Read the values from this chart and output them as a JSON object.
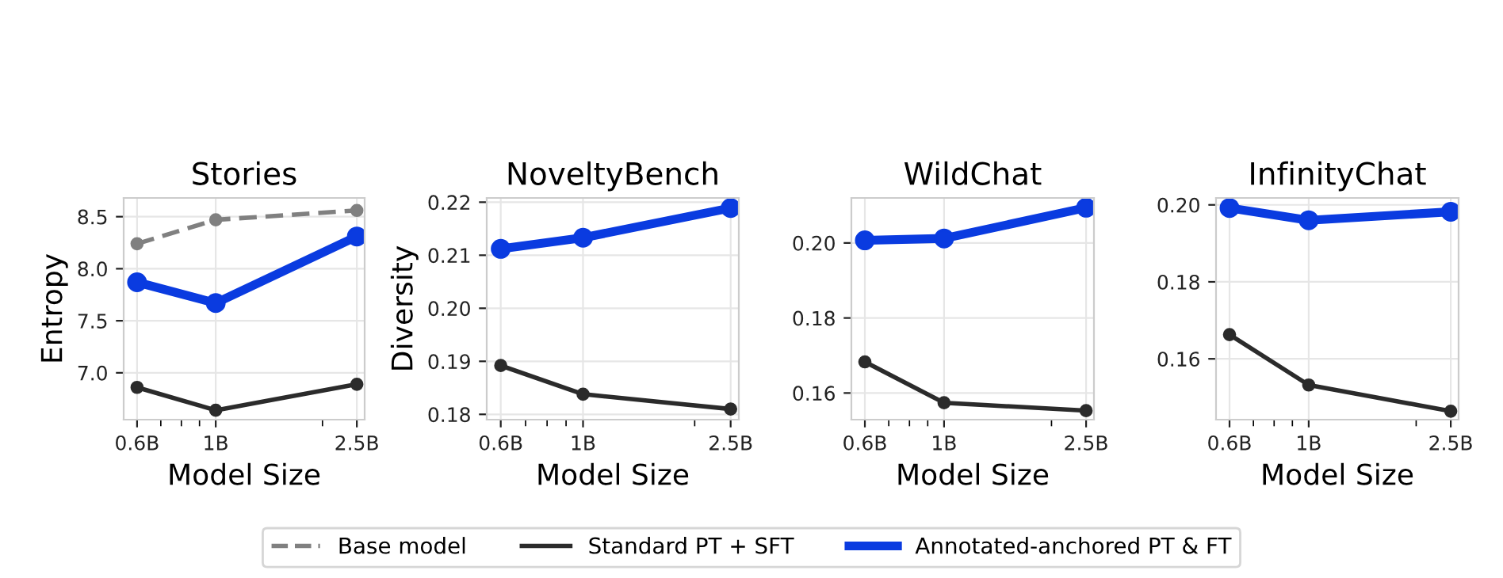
{
  "chart_data": [
    {
      "type": "line",
      "title": "Stories",
      "xlabel": "Model Size",
      "ylabel": "Entropy",
      "x": [
        0.6,
        1,
        2.5
      ],
      "log": "x",
      "xlim": [
        0.55,
        2.63
      ],
      "ylim": [
        6.55,
        8.68
      ],
      "xticks": [
        {
          "value": 0.6,
          "label": "0.6B"
        },
        {
          "value": 0.7,
          "label": null
        },
        {
          "value": 0.8,
          "label": null
        },
        {
          "value": 0.9,
          "label": null
        },
        {
          "value": 1,
          "label": "1B"
        },
        {
          "value": 2,
          "label": null
        },
        {
          "value": 2.5,
          "label": "2.5B"
        }
      ],
      "yticks": [
        {
          "value": 7,
          "label": "7.0"
        },
        7.5,
        {
          "value": 8,
          "label": "8.0"
        },
        8.5
      ],
      "grid": true,
      "marker": "circle",
      "legend": "bottom",
      "series": [
        {
          "name": "Base model",
          "color": "#808080",
          "line_style": "dashed",
          "values": [
            8.24,
            8.47,
            8.56
          ]
        },
        {
          "name": "Standard PT + SFT",
          "color": "#2b2b2b",
          "line_style": "solid",
          "values": [
            6.86,
            6.64,
            6.89
          ]
        },
        {
          "name": "Annotated-anchored PT & FT",
          "color": "#0a3be0",
          "line_style": "solid",
          "values": [
            7.87,
            7.67,
            8.31
          ]
        }
      ]
    },
    {
      "type": "line",
      "title": "NoveltyBench",
      "xlabel": "Model Size",
      "ylabel": "Diversity",
      "x": [
        0.6,
        1,
        2.5
      ],
      "log": "x",
      "xlim": [
        0.55,
        2.63
      ],
      "ylim": [
        0.179,
        0.2208
      ],
      "xticks": [
        {
          "value": 0.6,
          "label": "0.6B"
        },
        {
          "value": 0.7,
          "label": null
        },
        {
          "value": 0.8,
          "label": null
        },
        {
          "value": 0.9,
          "label": null
        },
        {
          "value": 1,
          "label": "1B"
        },
        {
          "value": 2,
          "label": null
        },
        {
          "value": 2.5,
          "label": "2.5B"
        }
      ],
      "yticks": [
        {
          "value": 0.18,
          "label": "0.18"
        },
        {
          "value": 0.19,
          "label": "0.19"
        },
        {
          "value": 0.2,
          "label": "0.20"
        },
        {
          "value": 0.21,
          "label": "0.21"
        },
        {
          "value": 0.22,
          "label": "0.22"
        }
      ],
      "grid": true,
      "marker": "circle",
      "series": [
        {
          "name": "Standard PT + SFT",
          "color": "#2b2b2b",
          "line_style": "solid",
          "values": [
            0.1892,
            0.1838,
            0.181
          ]
        },
        {
          "name": "Annotated-anchored PT & FT",
          "color": "#0a3be0",
          "line_style": "solid",
          "values": [
            0.2112,
            0.2133,
            0.2189
          ]
        }
      ]
    },
    {
      "type": "line",
      "title": "WildChat",
      "xlabel": "Model Size",
      "x": [
        0.6,
        1,
        2.5
      ],
      "log": "x",
      "xlim": [
        0.55,
        2.63
      ],
      "ylim": [
        0.1529,
        0.212
      ],
      "xticks": [
        {
          "value": 0.6,
          "label": "0.6B"
        },
        {
          "value": 0.7,
          "label": null
        },
        {
          "value": 0.8,
          "label": null
        },
        {
          "value": 0.9,
          "label": null
        },
        {
          "value": 1,
          "label": "1B"
        },
        {
          "value": 2,
          "label": null
        },
        {
          "value": 2.5,
          "label": "2.5B"
        }
      ],
      "yticks": [
        {
          "value": 0.16,
          "label": "0.16"
        },
        {
          "value": 0.18,
          "label": "0.18"
        },
        {
          "value": 0.2,
          "label": "0.20"
        }
      ],
      "grid": true,
      "marker": "circle",
      "series": [
        {
          "name": "Standard PT + SFT",
          "color": "#2b2b2b",
          "line_style": "solid",
          "values": [
            0.1683,
            0.1574,
            0.1553
          ]
        },
        {
          "name": "Annotated-anchored PT & FT",
          "color": "#0a3be0",
          "line_style": "solid",
          "values": [
            0.2007,
            0.2012,
            0.2094
          ]
        }
      ]
    },
    {
      "type": "line",
      "title": "InfinityChat",
      "xlabel": "Model Size",
      "x": [
        0.6,
        1,
        2.5
      ],
      "log": "x",
      "xlim": [
        0.55,
        2.63
      ],
      "ylim": [
        0.1442,
        0.2018
      ],
      "xticks": [
        {
          "value": 0.6,
          "label": "0.6B"
        },
        {
          "value": 0.7,
          "label": null
        },
        {
          "value": 0.8,
          "label": null
        },
        {
          "value": 0.9,
          "label": null
        },
        {
          "value": 1,
          "label": "1B"
        },
        {
          "value": 2,
          "label": null
        },
        {
          "value": 2.5,
          "label": "2.5B"
        }
      ],
      "yticks": [
        {
          "value": 0.16,
          "label": "0.16"
        },
        {
          "value": 0.18,
          "label": "0.18"
        },
        {
          "value": 0.2,
          "label": "0.20"
        }
      ],
      "grid": true,
      "marker": "circle",
      "series": [
        {
          "name": "Standard PT + SFT",
          "color": "#2b2b2b",
          "line_style": "solid",
          "values": [
            0.1663,
            0.1532,
            0.1464
          ]
        },
        {
          "name": "Annotated-anchored PT & FT",
          "color": "#0a3be0",
          "line_style": "solid",
          "values": [
            0.1992,
            0.196,
            0.1982
          ]
        }
      ]
    }
  ]
}
